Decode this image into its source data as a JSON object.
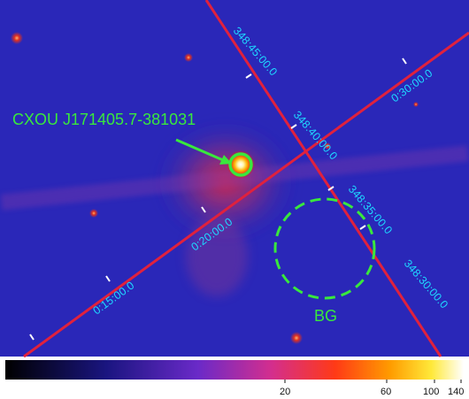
{
  "image": {
    "source_label": "CXOU J171405.7-381031",
    "background_label": "BG",
    "grid_labels": {
      "ra_1": "348:45:00.0",
      "ra_2": "348:40:00.0",
      "ra_3": "348:35:00.0",
      "ra_4": "348:30:00.0",
      "dec_1": "0:15:00.0",
      "dec_2": "0:20:00.0",
      "dec_3": "0:30:00.0"
    },
    "colorbar_ticks": [
      "20",
      "60",
      "100",
      "140"
    ],
    "colors": {
      "grid_line": "#e0213d",
      "label_cyan": "#1ed8ff",
      "marker_green": "#39e83d"
    }
  }
}
